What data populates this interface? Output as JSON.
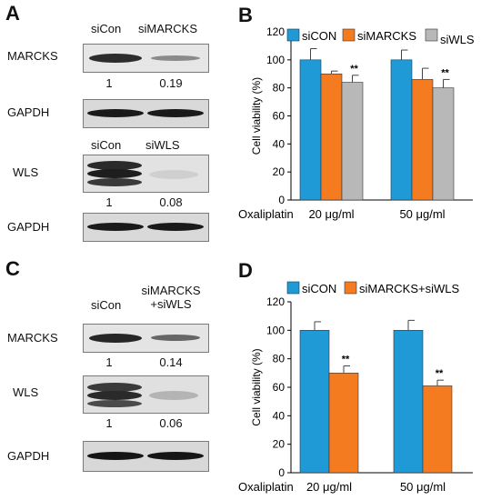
{
  "panelA": {
    "label": "A",
    "markers_block": {
      "lanes": [
        "siCon",
        "siMARCKS"
      ],
      "rows": [
        {
          "name": "MARCKS",
          "quant": [
            "1",
            "0.19"
          ]
        },
        {
          "name": "GAPDH",
          "quant": []
        }
      ]
    },
    "wls_block": {
      "lanes": [
        "siCon",
        "siWLS"
      ],
      "rows": [
        {
          "name": "WLS",
          "quant": [
            "1",
            "0.08"
          ]
        },
        {
          "name": "GAPDH",
          "quant": []
        }
      ]
    }
  },
  "panelC": {
    "label": "C",
    "lanes": [
      "siCon",
      "siMARCKS",
      "+siWLS"
    ],
    "rows": [
      {
        "name": "MARCKS",
        "quant": [
          "1",
          "0.14"
        ]
      },
      {
        "name": "WLS",
        "quant": [
          "1",
          "0.06"
        ]
      },
      {
        "name": "GAPDH",
        "quant": []
      }
    ]
  },
  "panelB": {
    "label": "B"
  },
  "panelD": {
    "label": "D"
  },
  "colors": {
    "siCON": "#1f9ad6",
    "siMARCKS": "#f47b20",
    "siWLS": "#b8b8b8"
  },
  "chart_data": [
    {
      "type": "bar",
      "categories": [
        "20 μg/ml",
        "50 μg/ml"
      ],
      "category_prefix": "Oxaliplatin",
      "series": [
        {
          "name": "siCON",
          "values": [
            100,
            100
          ],
          "errors": [
            8,
            7
          ],
          "sig": [
            "",
            ""
          ]
        },
        {
          "name": "siMARCKS",
          "values": [
            90,
            86
          ],
          "errors": [
            2,
            8
          ],
          "sig": [
            "",
            ""
          ]
        },
        {
          "name": "siWLS",
          "values": [
            84,
            80
          ],
          "errors": [
            5,
            6
          ],
          "sig": [
            "**",
            "**"
          ]
        }
      ],
      "ylabel": "Cell viability (%)",
      "ylim": [
        0,
        120
      ],
      "yticks": [
        "0",
        "20",
        "40",
        "60",
        "80",
        "100",
        "120"
      ],
      "legend": "top"
    },
    {
      "type": "bar",
      "categories": [
        "20 μg/ml",
        "50 μg/ml"
      ],
      "category_prefix": "Oxaliplatin",
      "series": [
        {
          "name": "siCON",
          "values": [
            100,
            100
          ],
          "errors": [
            6,
            7
          ],
          "sig": [
            "",
            ""
          ]
        },
        {
          "name": "siMARCKS+siWLS",
          "values": [
            70,
            61
          ],
          "errors": [
            5,
            4
          ],
          "sig": [
            "**",
            "**"
          ]
        }
      ],
      "ylabel": "Cell viability (%)",
      "ylim": [
        0,
        120
      ],
      "yticks": [
        "0",
        "20",
        "40",
        "60",
        "80",
        "100",
        "120"
      ],
      "legend": "top"
    }
  ]
}
